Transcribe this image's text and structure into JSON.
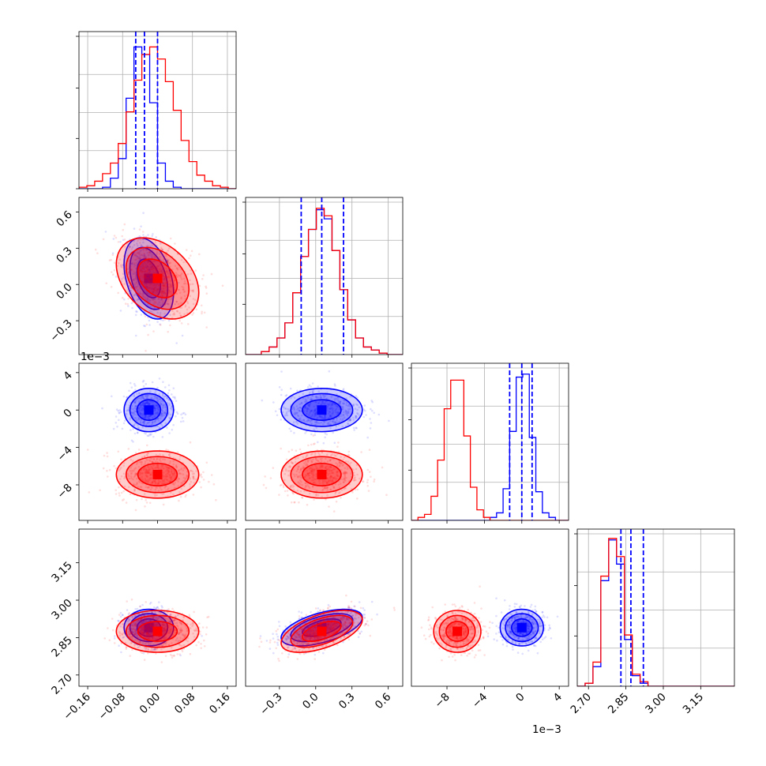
{
  "chart_data": {
    "type": "scatter",
    "colors": {
      "series_a": "#0000ff",
      "series_b": "#ff0000",
      "grid": "#b0b0b0"
    },
    "grid": true,
    "parameters": [
      {
        "range": [
          -0.18,
          0.18
        ],
        "ticks": [
          -0.16,
          -0.08,
          0.0,
          0.08,
          0.16
        ],
        "tick_labels": [
          "−0.16",
          "−0.08",
          "0.00",
          "0.08",
          "0.16"
        ],
        "offset_label": ""
      },
      {
        "range": [
          -0.58,
          0.72
        ],
        "ticks": [
          -0.3,
          0.0,
          0.3,
          0.6
        ],
        "tick_labels": [
          "−0.3",
          "0.0",
          "0.3",
          "0.6"
        ],
        "offset_label": ""
      },
      {
        "range": [
          -11.8,
          5.0
        ],
        "ticks": [
          -8,
          -4,
          0,
          4
        ],
        "tick_labels": [
          "−8",
          "−4",
          "0",
          "4"
        ],
        "offset_label": "1e−3"
      },
      {
        "range": [
          2.655,
          3.285
        ],
        "ticks": [
          2.7,
          2.85,
          3.0,
          3.15
        ],
        "tick_labels": [
          "2.70",
          "2.85",
          "3.00",
          "3.15"
        ],
        "offset_label": ""
      }
    ],
    "series": [
      {
        "color": "#0000ff",
        "means": [
          -0.02,
          0.05,
          0.0,
          2.89
        ],
        "sds": [
          0.027,
          0.16,
          1.1,
          0.035
        ],
        "quantile_lines": [
          [
            -0.05,
            -0.03,
            0.0
          ],
          [
            -0.12,
            0.05,
            0.23
          ],
          [
            -1.3,
            0.0,
            1.1
          ],
          [
            2.83,
            2.87,
            2.92
          ]
        ],
        "histograms": [
          [
            0.0,
            0.0,
            0.0,
            0.01,
            0.07,
            0.2,
            0.6,
            0.94,
            0.89,
            0.57,
            0.17,
            0.05,
            0.01,
            0.0,
            0.0,
            0.0,
            0.0,
            0.0,
            0.0,
            0.0
          ],
          [
            0.0,
            0.0,
            0.02,
            0.05,
            0.11,
            0.21,
            0.41,
            0.65,
            0.83,
            0.96,
            0.9,
            0.69,
            0.43,
            0.23,
            0.11,
            0.05,
            0.03,
            0.01,
            0.0,
            0.0
          ],
          [
            0.0,
            0.0,
            0.0,
            0.0,
            0.0,
            0.0,
            0.0,
            0.0,
            0.0,
            0.0,
            0.0,
            0.0,
            0.02,
            0.05,
            0.21,
            0.59,
            0.95,
            0.97,
            0.55,
            0.19,
            0.05,
            0.02,
            0.0,
            0.0
          ],
          [
            0.0,
            0.02,
            0.13,
            0.7,
            0.97,
            0.81,
            0.31,
            0.07,
            0.02,
            0.0,
            0.0,
            0.0,
            0.0,
            0.0,
            0.0,
            0.0,
            0.0,
            0.0,
            0.0,
            0.0
          ]
        ]
      },
      {
        "color": "#ff0000",
        "means": [
          0.0,
          0.05,
          -6.9,
          2.875
        ],
        "sds": [
          0.045,
          0.16,
          1.2,
          0.04
        ],
        "quantile_lines": [],
        "histograms": [
          [
            0.01,
            0.02,
            0.05,
            0.1,
            0.17,
            0.3,
            0.51,
            0.72,
            0.89,
            0.94,
            0.86,
            0.71,
            0.52,
            0.32,
            0.18,
            0.09,
            0.05,
            0.02,
            0.01,
            0.0
          ],
          [
            0.0,
            0.0,
            0.02,
            0.05,
            0.11,
            0.21,
            0.41,
            0.65,
            0.83,
            0.97,
            0.92,
            0.69,
            0.43,
            0.23,
            0.11,
            0.05,
            0.03,
            0.01,
            0.0,
            0.0
          ],
          [
            0.0,
            0.02,
            0.04,
            0.16,
            0.4,
            0.74,
            0.93,
            0.93,
            0.56,
            0.22,
            0.07,
            0.02,
            0.0,
            0.0,
            0.0,
            0.0,
            0.0,
            0.0,
            0.0,
            0.0,
            0.0,
            0.0,
            0.0,
            0.0
          ],
          [
            0.0,
            0.02,
            0.16,
            0.73,
            0.98,
            0.86,
            0.34,
            0.08,
            0.03,
            0.0,
            0.0,
            0.0,
            0.0,
            0.0,
            0.0,
            0.0,
            0.0,
            0.0,
            0.0,
            0.0
          ]
        ]
      }
    ],
    "correlations": {
      "series_a": [
        [
          0,
          1,
          -0.35
        ],
        [
          0,
          3,
          0.0
        ],
        [
          1,
          3,
          0.55
        ]
      ],
      "series_b": [
        [
          0,
          1,
          -0.35
        ],
        [
          0,
          3,
          0.0
        ],
        [
          1,
          3,
          0.55
        ]
      ]
    },
    "contour_levels": [
      1.0,
      1.6,
      2.1
    ]
  }
}
